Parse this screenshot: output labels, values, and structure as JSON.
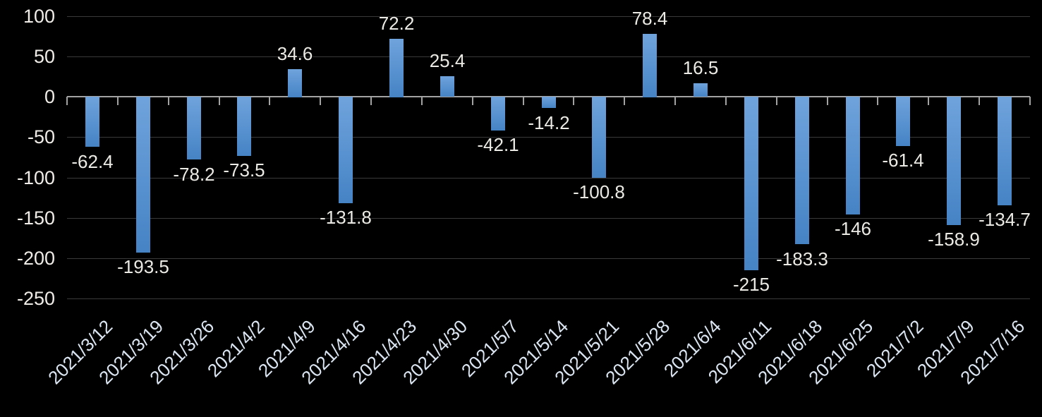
{
  "chart_data": {
    "type": "bar",
    "title": "",
    "categories": [
      "2021/3/12",
      "2021/3/19",
      "2021/3/26",
      "2021/4/2",
      "2021/4/9",
      "2021/4/16",
      "2021/4/23",
      "2021/4/30",
      "2021/5/7",
      "2021/5/14",
      "2021/5/21",
      "2021/5/28",
      "2021/6/4",
      "2021/6/11",
      "2021/6/18",
      "2021/6/25",
      "2021/7/2",
      "2021/7/9",
      "2021/7/16"
    ],
    "values": [
      -62.4,
      -193.5,
      -78.2,
      -73.5,
      34.6,
      -131.8,
      72.2,
      25.4,
      -42.1,
      -14.2,
      -100.8,
      78.4,
      16.5,
      -215,
      -183.3,
      -146,
      -61.4,
      -158.9,
      -134.7
    ],
    "value_labels": [
      "-62.4",
      "-193.5",
      "-78.2",
      "-73.5",
      "34.6",
      "-131.8",
      "72.2",
      "25.4",
      "-42.1",
      "-14.2",
      "-100.8",
      "78.4",
      "16.5",
      "-215",
      "-183.3",
      "-146",
      "-61.4",
      "-158.9",
      "-134.7"
    ],
    "xlabel": "",
    "ylabel": "",
    "ylim": [
      -250,
      100
    ],
    "y_ticks": [
      100,
      50,
      0,
      -50,
      -100,
      -150,
      -200,
      -250
    ],
    "y_tick_labels": [
      "100",
      "50",
      "0",
      "-50",
      "-100",
      "-150",
      "-200",
      "-250"
    ],
    "grid": true,
    "legend_position": "none",
    "data_labels_visible": true,
    "x_label_rotation_deg": 45,
    "colors": {
      "background": "#000000",
      "bar_gradient_top": "#6fa3dc",
      "bar_gradient_bottom": "#4583c5",
      "gridline": "#3a3a3a",
      "axis_line": "#a3a3a3",
      "y_tick_label": "#f0ede8",
      "x_tick_label": "#dce6f2",
      "data_label": "#eceae4"
    }
  }
}
